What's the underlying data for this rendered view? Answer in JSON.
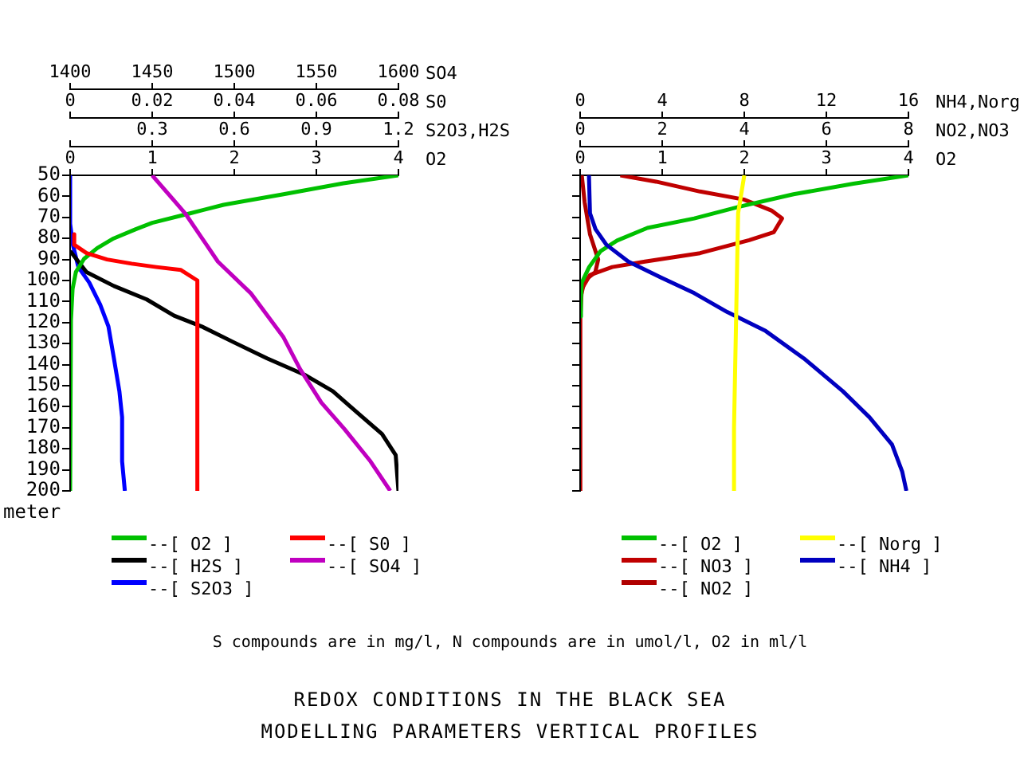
{
  "chart_data": [
    {
      "type": "line",
      "ylabel": "meter",
      "xlabel": "O2",
      "x2label": "S2O3,H2S",
      "xlim": [
        0,
        4
      ],
      "xticks": [
        0,
        1,
        2,
        3,
        4
      ],
      "x2lim": [
        0,
        1.2
      ],
      "x2ticks": [
        {
          "value": 0,
          "label": null
        },
        0.3,
        0.6,
        0.9,
        1.2
      ],
      "ylim": [
        200,
        50
      ],
      "yticks": [
        50,
        60,
        70,
        80,
        90,
        100,
        110,
        120,
        130,
        140,
        150,
        160,
        170,
        180,
        190,
        200
      ],
      "grid": false,
      "legend": "bottom",
      "marker": "none",
      "series": [
        {
          "name": "--[ O2 ]",
          "color": "#00c000",
          "x": [
            4,
            3.33,
            2.6,
            1.87,
            1.47,
            1,
            0.8,
            0.53,
            0.33,
            0.17,
            0.07,
            0.03,
            0.01,
            0
          ],
          "values": [
            50,
            53.8,
            59,
            64,
            68,
            72.6,
            75.6,
            80,
            84.6,
            89.7,
            96,
            104,
            119,
            200
          ]
        },
        {
          "name": "--[ H2S ]",
          "color": "#000000",
          "axis": "x2",
          "x": [
            0,
            0.06,
            0.16,
            0.28,
            0.38,
            0.48,
            0.6,
            0.72,
            0.86,
            0.96,
            1.06,
            1.14,
            1.19,
            1.2
          ],
          "values": [
            86,
            96,
            102.6,
            109,
            116.7,
            121.8,
            129.5,
            137,
            145,
            152.6,
            164,
            173,
            183,
            200
          ]
        },
        {
          "name": "--[ S2O3 ]",
          "color": "#0000ff",
          "axis": "x2",
          "x": [
            0,
            0,
            0.01,
            0.03,
            0.07,
            0.11,
            0.14,
            0.16,
            0.18,
            0.19,
            0.19,
            0.2
          ],
          "values": [
            50,
            73,
            83,
            93.6,
            101,
            111.5,
            121.8,
            137,
            152.6,
            165,
            186,
            200
          ]
        }
      ]
    },
    {
      "type": "line",
      "xlabel": "S0",
      "x2label": "SO4",
      "xlim": [
        0,
        0.08
      ],
      "xticks": [
        0,
        0.02,
        0.04,
        0.06,
        0.08
      ],
      "x2lim": [
        1400,
        1600
      ],
      "x2ticks": [
        1400,
        1450,
        1500,
        1550,
        1600
      ],
      "ylim": [
        200,
        50
      ],
      "yticks": [
        50,
        60,
        70,
        80,
        90,
        100,
        110,
        120,
        130,
        140,
        150,
        160,
        170,
        180,
        190,
        200
      ],
      "tick_labels": "x",
      "grid": false,
      "legend": "bottom",
      "marker": "none",
      "series": [
        {
          "name": "--[ S0 ]",
          "color": "#ff0000",
          "x": [
            0.001,
            0.001,
            0.004,
            0.009,
            0.015,
            0.021,
            0.027,
            0.031,
            0.031
          ],
          "values": [
            78,
            83,
            87,
            90,
            92,
            93.6,
            95,
            100,
            200
          ]
        },
        {
          "name": "--[ SO4 ]",
          "color": "#c000c0",
          "axis": "x2",
          "x": [
            1450,
            1470,
            1490,
            1510,
            1530,
            1540,
            1553,
            1567,
            1583,
            1595
          ],
          "values": [
            50,
            68,
            91,
            106,
            127,
            142,
            158,
            170.5,
            186,
            200
          ]
        }
      ]
    },
    {
      "type": "line",
      "xlabel": "O2",
      "x2label": "NO2,NO3",
      "xlim": [
        0,
        4
      ],
      "xticks": [
        0,
        1,
        2,
        3,
        4
      ],
      "x2lim": [
        0,
        8
      ],
      "x2ticks": [
        0,
        2,
        4,
        6,
        8
      ],
      "ylim": [
        200,
        50
      ],
      "yticks": [
        50,
        60,
        70,
        80,
        90,
        100,
        110,
        120,
        130,
        140,
        150,
        160,
        170,
        180,
        190,
        200
      ],
      "tick_labels": "x",
      "grid": false,
      "legend": "bottom",
      "marker": "none",
      "series": [
        {
          "name": "--[ O2 ]",
          "color": "#00c000",
          "x": [
            4,
            3.33,
            2.6,
            1.93,
            1.39,
            0.82,
            0.45,
            0.25,
            0.11,
            0.02,
            0.01,
            0.01
          ],
          "values": [
            50,
            54,
            59,
            65,
            70.5,
            75,
            81,
            86,
            93.6,
            101,
            109,
            117
          ]
        },
        {
          "name": "--[ NO3 ]",
          "color": "#c00000",
          "axis": "x2",
          "x": [
            0.98,
            1.85,
            2.92,
            3.99,
            4.66,
            4.92,
            4.72,
            4.12,
            2.92,
            1.58,
            0.78,
            0.24,
            0.04,
            0,
            0
          ],
          "values": [
            50,
            53,
            57.7,
            61.5,
            66.7,
            70.5,
            77,
            80.8,
            87,
            91,
            93.6,
            97.4,
            104,
            119,
            200
          ]
        },
        {
          "name": "--[ NO2 ]",
          "color": "#b00000",
          "axis": "x2",
          "x": [
            0.04,
            0.11,
            0.24,
            0.44,
            0.37,
            0.11,
            0,
            0
          ],
          "values": [
            50,
            62.8,
            78,
            90,
            96,
            100,
            109,
            200
          ]
        }
      ]
    },
    {
      "type": "line",
      "xlabel": "NH4,Norg",
      "xlim": [
        0,
        16
      ],
      "xticks": [
        0,
        4,
        8,
        12,
        16
      ],
      "ylim": [
        200,
        50
      ],
      "yticks": [
        50,
        60,
        70,
        80,
        90,
        100,
        110,
        120,
        130,
        140,
        150,
        160,
        170,
        180,
        190,
        200
      ],
      "tick_labels": "x",
      "grid": false,
      "legend": "bottom",
      "marker": "none",
      "series": [
        {
          "name": "--[ Norg ]",
          "color": "#ffff00",
          "x": [
            8,
            7.7,
            7.6,
            7.5,
            7.5
          ],
          "values": [
            50,
            68,
            119,
            170,
            200
          ]
        },
        {
          "name": "--[ NH4 ]",
          "color": "#0000c0",
          "x": [
            0.43,
            0.48,
            0.75,
            1.28,
            2.35,
            3.96,
            5.56,
            7.17,
            9.04,
            10.9,
            12.8,
            14.1,
            15.2,
            15.7,
            15.9
          ],
          "values": [
            50,
            68,
            75.6,
            83,
            91,
            98.7,
            106,
            115,
            124,
            137,
            152.6,
            165,
            178,
            191,
            200
          ]
        }
      ]
    },
    {
      "type": "other",
      "title": "REDOX CONDITIONS IN THE BLACK SEA",
      "subtitle": "MODELLING PARAMETERS VERTICAL PROFILES",
      "annotations": [
        "S compounds are in mg/l, N compounds are in umol/l, O2 in ml/l"
      ]
    }
  ]
}
